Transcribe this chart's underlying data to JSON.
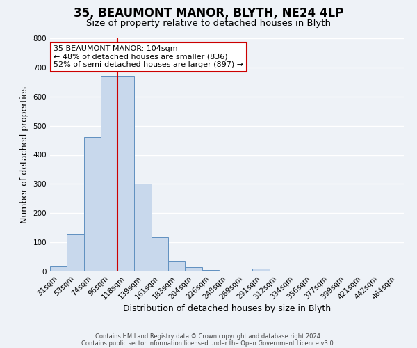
{
  "title": "35, BEAUMONT MANOR, BLYTH, NE24 4LP",
  "subtitle": "Size of property relative to detached houses in Blyth",
  "xlabel": "Distribution of detached houses by size in Blyth",
  "ylabel": "Number of detached properties",
  "bar_labels": [
    "31sqm",
    "53sqm",
    "74sqm",
    "96sqm",
    "118sqm",
    "139sqm",
    "161sqm",
    "183sqm",
    "204sqm",
    "226sqm",
    "248sqm",
    "269sqm",
    "291sqm",
    "312sqm",
    "334sqm",
    "356sqm",
    "377sqm",
    "399sqm",
    "421sqm",
    "442sqm",
    "464sqm"
  ],
  "bar_heights": [
    18,
    128,
    460,
    670,
    670,
    300,
    118,
    35,
    15,
    5,
    2,
    0,
    10,
    0,
    0,
    0,
    0,
    0,
    0,
    0,
    0
  ],
  "bar_color": "#c8d8ec",
  "bar_edge_color": "#6090c0",
  "ylim": [
    0,
    800
  ],
  "yticks": [
    0,
    100,
    200,
    300,
    400,
    500,
    600,
    700,
    800
  ],
  "vline_pos": 3.5,
  "vline_color": "#cc0000",
  "annotation_title": "35 BEAUMONT MANOR: 104sqm",
  "annotation_line1": "← 48% of detached houses are smaller (836)",
  "annotation_line2": "52% of semi-detached houses are larger (897) →",
  "annotation_box_facecolor": "#ffffff",
  "annotation_box_edgecolor": "#cc0000",
  "footnote1": "Contains HM Land Registry data © Crown copyright and database right 2024.",
  "footnote2": "Contains public sector information licensed under the Open Government Licence v3.0.",
  "bg_color": "#eef2f7",
  "grid_color": "#ffffff",
  "title_fontsize": 12,
  "subtitle_fontsize": 9.5,
  "axis_label_fontsize": 9,
  "tick_fontsize": 7.5,
  "annot_fontsize": 8,
  "footnote_fontsize": 6
}
